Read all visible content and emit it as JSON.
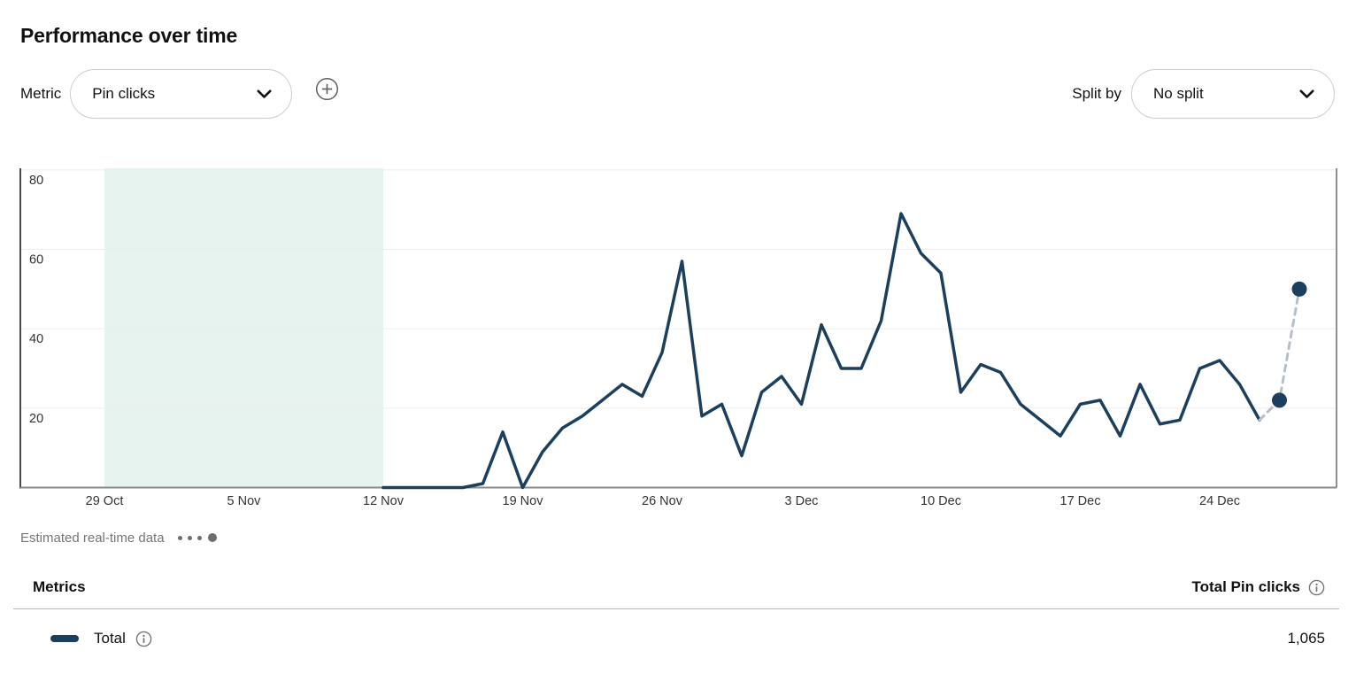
{
  "header": {
    "title": "Performance over time"
  },
  "controls": {
    "metric_label": "Metric",
    "metric_value": "Pin clicks",
    "split_by_label": "Split by",
    "split_by_value": "No split"
  },
  "legend": {
    "estimated_label": "Estimated real-time data"
  },
  "table": {
    "metrics_header": "Metrics",
    "total_column_header": "Total Pin clicks",
    "rows": [
      {
        "label": "Total",
        "value": "1,065"
      }
    ]
  },
  "chart_data": {
    "type": "line",
    "metric": "Pin clicks",
    "grid": true,
    "x_axis": {
      "tick_labels": [
        "29 Oct",
        "5 Nov",
        "12 Nov",
        "19 Nov",
        "26 Nov",
        "3 Dec",
        "10 Dec",
        "17 Dec",
        "24 Dec"
      ],
      "tick_days": [
        0,
        7,
        14,
        21,
        28,
        35,
        42,
        49,
        56
      ]
    },
    "y_axis": {
      "ticks": [
        20,
        40,
        60,
        80
      ],
      "range": [
        0,
        80
      ]
    },
    "highlight_region": {
      "start_label": "29 Oct",
      "end_label": "12 Nov",
      "start_day": 0,
      "end_day": 14
    },
    "series": [
      {
        "name": "Total",
        "start_day": 14,
        "dates": [
          "12 Nov",
          "13 Nov",
          "14 Nov",
          "15 Nov",
          "16 Nov",
          "17 Nov",
          "18 Nov",
          "19 Nov",
          "20 Nov",
          "21 Nov",
          "22 Nov",
          "23 Nov",
          "24 Nov",
          "25 Nov",
          "26 Nov",
          "27 Nov",
          "28 Nov",
          "29 Nov",
          "30 Nov",
          "1 Dec",
          "2 Dec",
          "3 Dec",
          "4 Dec",
          "5 Dec",
          "6 Dec",
          "7 Dec",
          "8 Dec",
          "9 Dec",
          "10 Dec",
          "11 Dec",
          "12 Dec",
          "13 Dec",
          "14 Dec",
          "15 Dec",
          "16 Dec",
          "17 Dec",
          "18 Dec",
          "19 Dec",
          "20 Dec",
          "21 Dec",
          "22 Dec",
          "23 Dec",
          "24 Dec",
          "25 Dec",
          "26 Dec"
        ],
        "values": [
          0,
          0,
          0,
          0,
          0,
          1,
          14,
          0,
          9,
          15,
          18,
          22,
          26,
          23,
          34,
          57,
          18,
          21,
          8,
          24,
          28,
          21,
          41,
          30,
          30,
          42,
          69,
          59,
          54,
          24,
          31,
          29,
          21,
          17,
          13,
          21,
          22,
          13,
          26,
          16,
          17,
          30,
          32,
          26,
          17
        ]
      }
    ],
    "estimated_realtime": {
      "start_day": 59,
      "dates": [
        "27 Dec",
        "28 Dec"
      ],
      "values": [
        22,
        50
      ]
    },
    "total": "1,065",
    "colors": {
      "line": "#1c3f5e",
      "estimated_line": "#b7c0c8",
      "estimated_dot": "#1c3f5e",
      "highlight": "#e7f3ee",
      "grid": "#ececec",
      "axis_left": "#4a4a4a",
      "axis_bottom": "#8a8a8a",
      "axis_right": "#6a6a6a",
      "tick_text": "#333333"
    }
  }
}
